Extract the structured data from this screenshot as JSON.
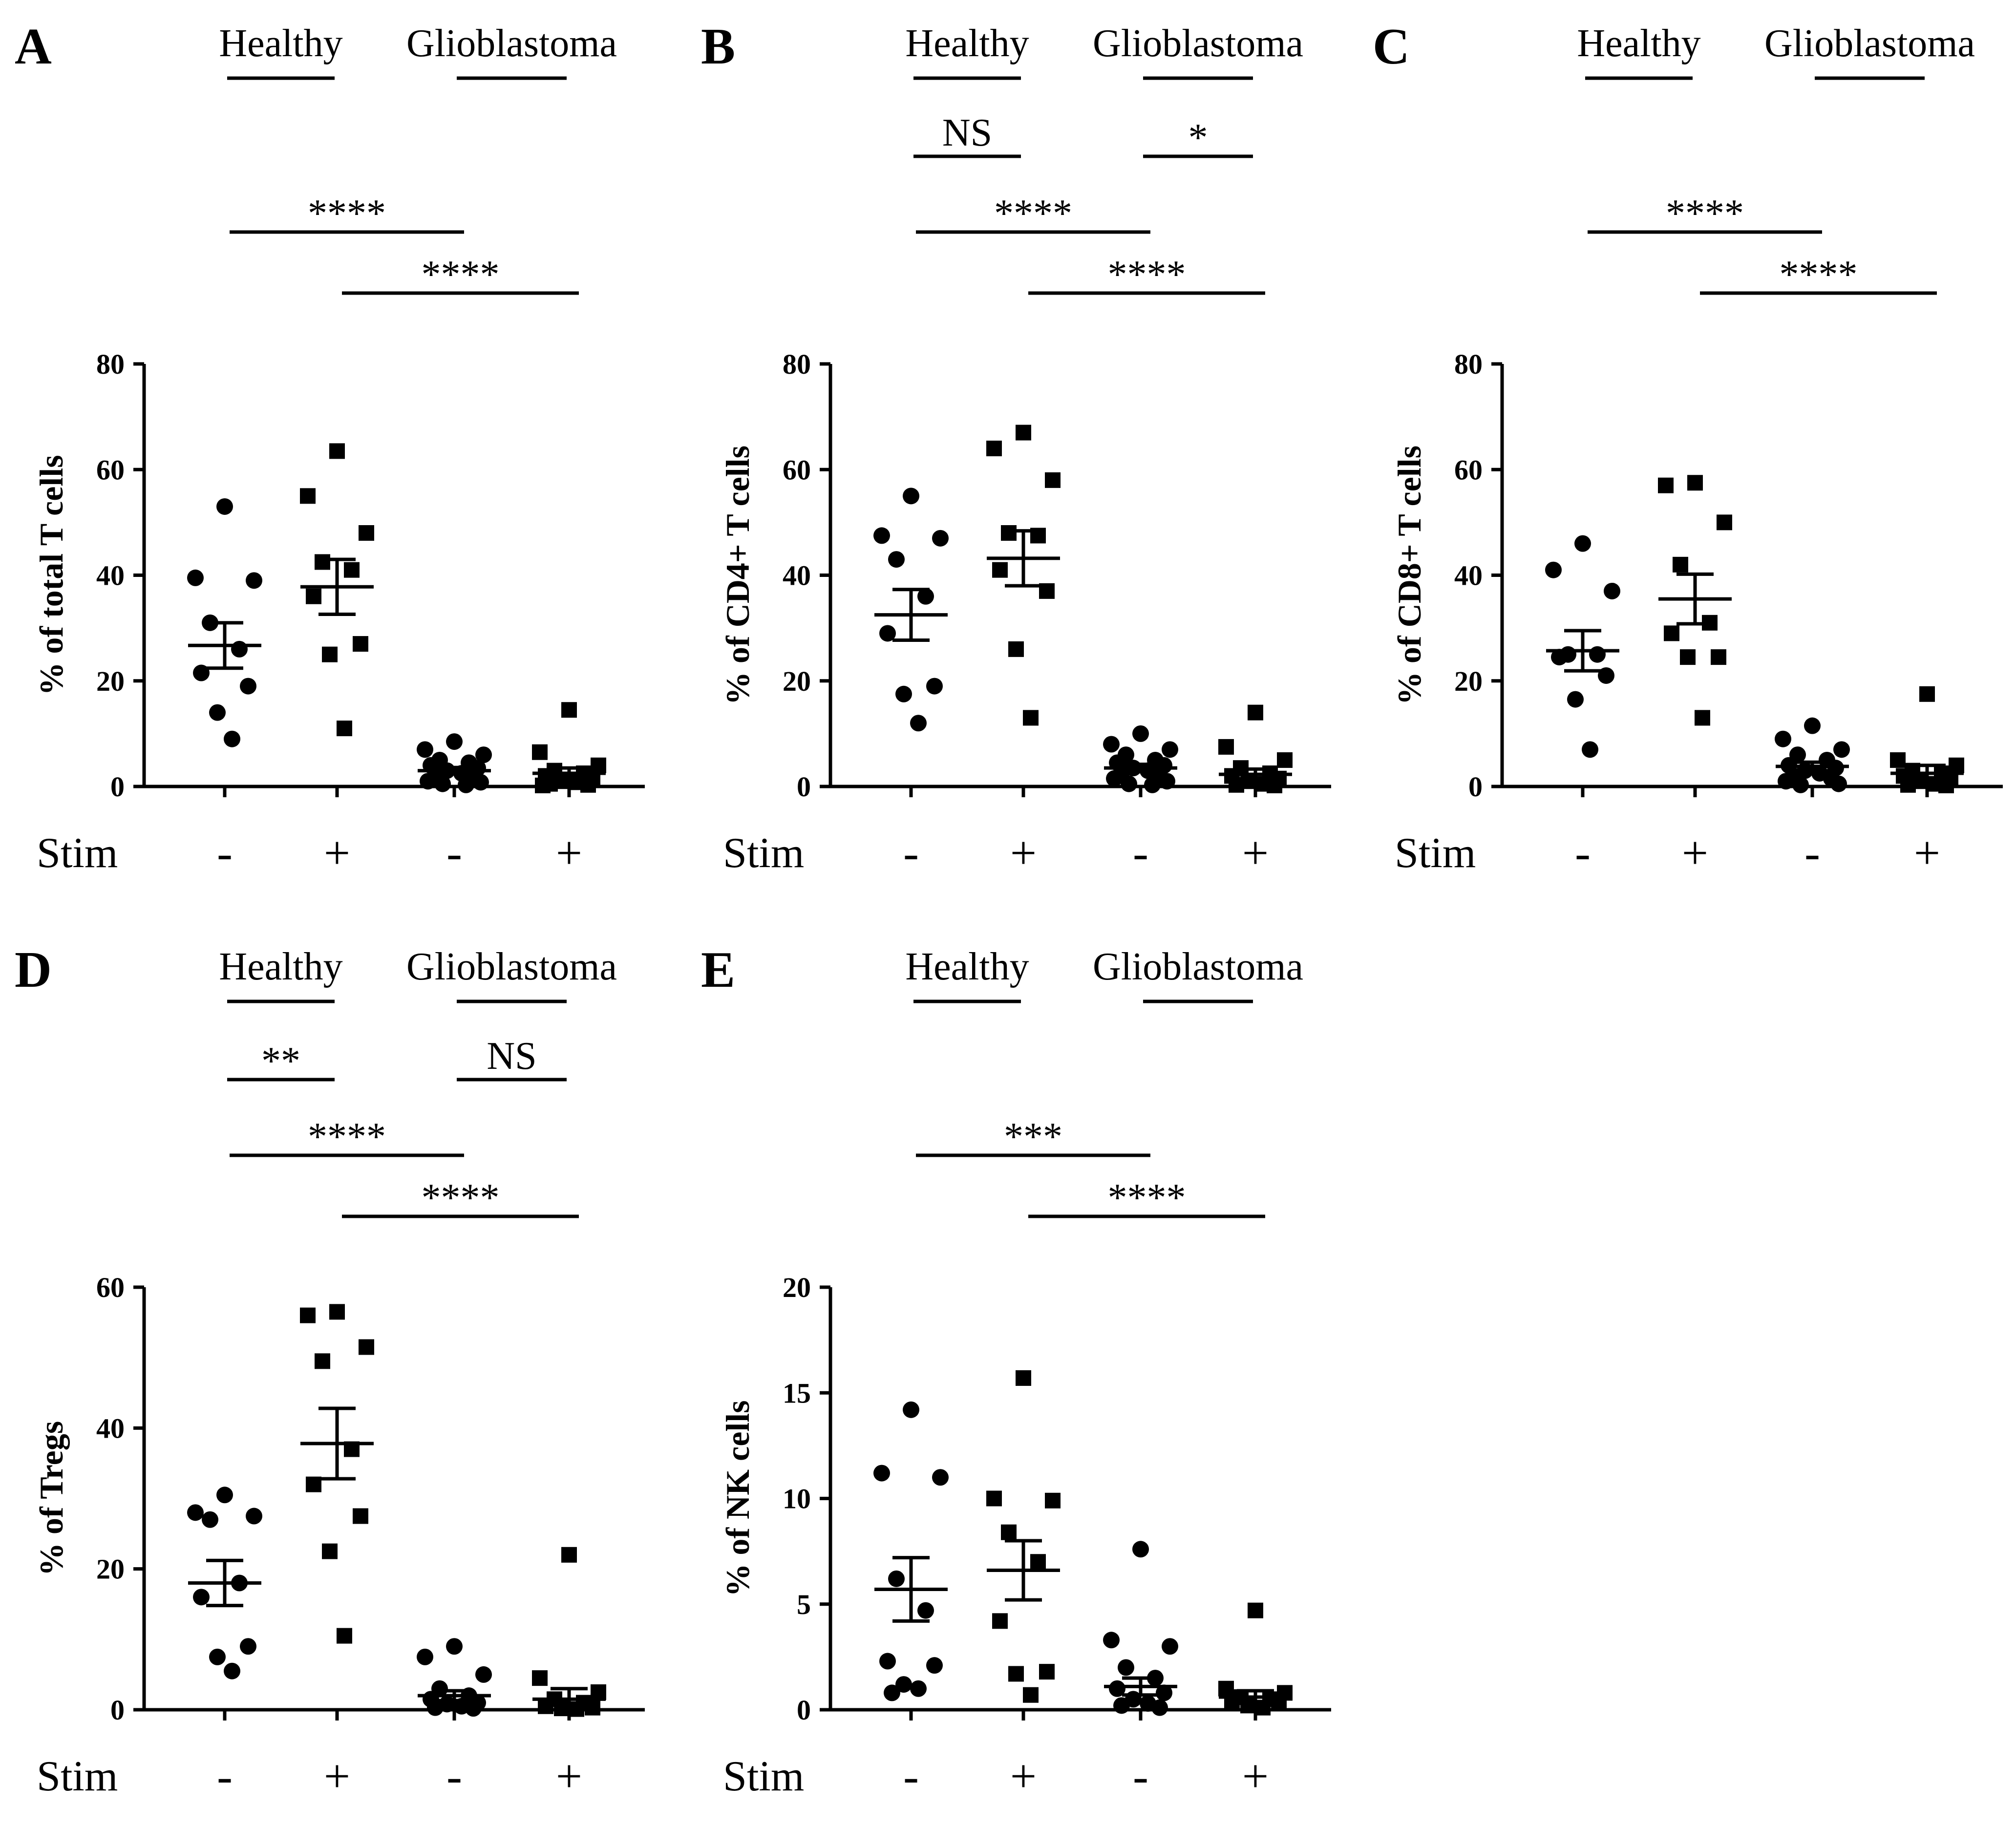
{
  "labels": {
    "stim": "Stim",
    "group_healthy": "Healthy",
    "group_glioblastoma": "Glioblastoma",
    "stim_signs": [
      "-",
      "+",
      "-",
      "+"
    ]
  },
  "chart_data": [
    {
      "type": "scatter",
      "panel": "A",
      "ylabel": "% of total T cells",
      "ylim": [
        0,
        80
      ],
      "yticks": [
        0,
        20,
        40,
        60,
        80
      ],
      "categories": [
        "Healthy -",
        "Healthy +",
        "Glioblastoma -",
        "Glioblastoma +"
      ],
      "stim": [
        "-",
        "+",
        "-",
        "+"
      ],
      "groups": [
        "Healthy",
        "Glioblastoma"
      ],
      "series": [
        {
          "group": "Healthy",
          "stim": "-",
          "marker": "circle",
          "values": [
            53,
            39.5,
            39,
            31,
            26,
            21.5,
            19,
            14,
            9
          ],
          "mean": 26.7,
          "sem": 4.3
        },
        {
          "group": "Healthy",
          "stim": "+",
          "marker": "square",
          "values": [
            63.5,
            55,
            48,
            42.5,
            41,
            36,
            27,
            25,
            11
          ],
          "mean": 37.8,
          "sem": 5.2
        },
        {
          "group": "Glioblastoma",
          "stim": "-",
          "marker": "circle",
          "values": [
            8.5,
            7,
            6,
            5,
            4.5,
            4,
            3.5,
            3,
            2.5,
            2,
            1.5,
            1,
            0.8,
            0.5,
            0.3
          ],
          "mean": 3.0,
          "sem": 0.6
        },
        {
          "group": "Glioblastoma",
          "stim": "+",
          "marker": "square",
          "values": [
            14.5,
            6.5,
            4,
            3,
            2.5,
            2,
            1.5,
            1,
            0.8,
            0.5,
            0.3,
            0.2
          ],
          "mean": 2.5,
          "sem": 1.0
        }
      ],
      "comparisons": [
        {
          "from": 0,
          "to": 2,
          "label": "****"
        },
        {
          "from": 1,
          "to": 3,
          "label": "****"
        }
      ]
    },
    {
      "type": "scatter",
      "panel": "B",
      "ylabel": "% of CD4+ T cells",
      "ylim": [
        0,
        80
      ],
      "yticks": [
        0,
        20,
        40,
        60,
        80
      ],
      "categories": [
        "Healthy -",
        "Healthy +",
        "Glioblastoma -",
        "Glioblastoma +"
      ],
      "stim": [
        "-",
        "+",
        "-",
        "+"
      ],
      "groups": [
        "Healthy",
        "Glioblastoma"
      ],
      "series": [
        {
          "group": "Healthy",
          "stim": "-",
          "marker": "circle",
          "values": [
            55,
            47.5,
            47,
            43,
            36,
            29,
            19,
            17.5,
            12
          ],
          "mean": 32.5,
          "sem": 4.8
        },
        {
          "group": "Healthy",
          "stim": "+",
          "marker": "square",
          "values": [
            67,
            64,
            58,
            48,
            47.5,
            41,
            37,
            26,
            13
          ],
          "mean": 43.2,
          "sem": 5.2
        },
        {
          "group": "Glioblastoma",
          "stim": "-",
          "marker": "circle",
          "values": [
            10,
            8,
            7,
            6,
            5,
            4.5,
            4,
            3.5,
            3,
            2.5,
            2,
            1.5,
            1,
            0.5,
            0.3
          ],
          "mean": 3.5,
          "sem": 0.7
        },
        {
          "group": "Glioblastoma",
          "stim": "+",
          "marker": "square",
          "values": [
            14,
            7.5,
            5,
            3.5,
            2.5,
            2,
            1.5,
            1,
            0.5,
            0.3,
            0.2
          ],
          "mean": 2.3,
          "sem": 1.0
        }
      ],
      "comparisons": [
        {
          "from": 0,
          "to": 1,
          "label": "NS"
        },
        {
          "from": 2,
          "to": 3,
          "label": "*"
        },
        {
          "from": 0,
          "to": 2,
          "label": "****"
        },
        {
          "from": 1,
          "to": 3,
          "label": "****"
        }
      ]
    },
    {
      "type": "scatter",
      "panel": "C",
      "ylabel": "% of CD8+ T cells",
      "ylim": [
        0,
        80
      ],
      "yticks": [
        0,
        20,
        40,
        60,
        80
      ],
      "categories": [
        "Healthy -",
        "Healthy +",
        "Glioblastoma -",
        "Glioblastoma +"
      ],
      "stim": [
        "-",
        "+",
        "-",
        "+"
      ],
      "groups": [
        "Healthy",
        "Glioblastoma"
      ],
      "series": [
        {
          "group": "Healthy",
          "stim": "-",
          "marker": "circle",
          "values": [
            46,
            41,
            37,
            25,
            25,
            24.5,
            21,
            16.5,
            7
          ],
          "mean": 25.7,
          "sem": 3.8
        },
        {
          "group": "Healthy",
          "stim": "+",
          "marker": "square",
          "values": [
            57.5,
            57,
            50,
            42,
            31,
            29,
            24.5,
            24.5,
            13
          ],
          "mean": 35.5,
          "sem": 4.7
        },
        {
          "group": "Glioblastoma",
          "stim": "-",
          "marker": "circle",
          "values": [
            11.5,
            9,
            7,
            6,
            5,
            4,
            3.5,
            3,
            2.5,
            2,
            1.5,
            1,
            0.5,
            0.3
          ],
          "mean": 3.8,
          "sem": 0.8
        },
        {
          "group": "Glioblastoma",
          "stim": "+",
          "marker": "square",
          "values": [
            17.5,
            5,
            4,
            3,
            2.5,
            2,
            1.5,
            1,
            0.5,
            0.3,
            0.2
          ],
          "mean": 2.5,
          "sem": 1.5
        }
      ],
      "comparisons": [
        {
          "from": 0,
          "to": 2,
          "label": "****"
        },
        {
          "from": 1,
          "to": 3,
          "label": "****"
        }
      ]
    },
    {
      "type": "scatter",
      "panel": "D",
      "ylabel": "% of Tregs",
      "ylim": [
        0,
        60
      ],
      "yticks": [
        0,
        20,
        40,
        60
      ],
      "categories": [
        "Healthy -",
        "Healthy +",
        "Glioblastoma -",
        "Glioblastoma +"
      ],
      "stim": [
        "-",
        "+",
        "-",
        "+"
      ],
      "groups": [
        "Healthy",
        "Glioblastoma"
      ],
      "series": [
        {
          "group": "Healthy",
          "stim": "-",
          "marker": "circle",
          "values": [
            30.5,
            28,
            27.5,
            27,
            18,
            16,
            9,
            7.5,
            5.5
          ],
          "mean": 18.0,
          "sem": 3.2
        },
        {
          "group": "Healthy",
          "stim": "+",
          "marker": "square",
          "values": [
            56.5,
            56,
            51.5,
            49.5,
            37,
            32,
            27.5,
            22.5,
            10.5
          ],
          "mean": 37.8,
          "sem": 5.0
        },
        {
          "group": "Glioblastoma",
          "stim": "-",
          "marker": "circle",
          "values": [
            9,
            7.5,
            5,
            3,
            2,
            1.5,
            1,
            0.8,
            0.5,
            0.3,
            0.2
          ],
          "mean": 2.0,
          "sem": 0.7
        },
        {
          "group": "Glioblastoma",
          "stim": "+",
          "marker": "square",
          "values": [
            22,
            4.5,
            2.5,
            1.5,
            1,
            0.5,
            0.3,
            0.2,
            0.1
          ],
          "mean": 1.5,
          "sem": 1.5
        }
      ],
      "comparisons": [
        {
          "from": 0,
          "to": 1,
          "label": "**"
        },
        {
          "from": 2,
          "to": 3,
          "label": "NS"
        },
        {
          "from": 0,
          "to": 2,
          "label": "****"
        },
        {
          "from": 1,
          "to": 3,
          "label": "****"
        }
      ]
    },
    {
      "type": "scatter",
      "panel": "E",
      "ylabel": "% of NK cells",
      "ylim": [
        0,
        20
      ],
      "yticks": [
        0,
        5,
        10,
        15,
        20
      ],
      "categories": [
        "Healthy -",
        "Healthy +",
        "Glioblastoma -",
        "Glioblastoma +"
      ],
      "stim": [
        "-",
        "+",
        "-",
        "+"
      ],
      "groups": [
        "Healthy",
        "Glioblastoma"
      ],
      "series": [
        {
          "group": "Healthy",
          "stim": "-",
          "marker": "circle",
          "values": [
            14.2,
            11.2,
            11,
            6.2,
            4.7,
            2.3,
            2.1,
            1.2,
            1.0,
            0.8
          ],
          "mean": 5.7,
          "sem": 1.5
        },
        {
          "group": "Healthy",
          "stim": "+",
          "marker": "square",
          "values": [
            15.7,
            10,
            9.9,
            8.4,
            7,
            4.2,
            1.8,
            1.7,
            0.7
          ],
          "mean": 6.6,
          "sem": 1.4
        },
        {
          "group": "Glioblastoma",
          "stim": "-",
          "marker": "circle",
          "values": [
            7.6,
            3.3,
            3,
            2,
            1.5,
            1,
            0.8,
            0.5,
            0.3,
            0.2,
            0.1
          ],
          "mean": 1.1,
          "sem": 0.4
        },
        {
          "group": "Glioblastoma",
          "stim": "+",
          "marker": "square",
          "values": [
            4.7,
            1,
            0.8,
            0.6,
            0.5,
            0.4,
            0.3,
            0.2,
            0.1
          ],
          "mean": 0.6,
          "sem": 0.3
        }
      ],
      "comparisons": [
        {
          "from": 0,
          "to": 2,
          "label": "***"
        },
        {
          "from": 1,
          "to": 3,
          "label": "****"
        }
      ]
    }
  ]
}
